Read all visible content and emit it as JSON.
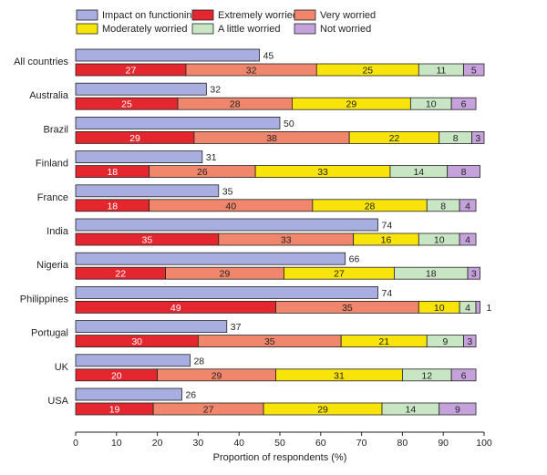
{
  "chart_data": {
    "type": "bar",
    "title": "",
    "xlabel": "Proportion of respondents (%)",
    "ylabel": "",
    "xlim": [
      0,
      100
    ],
    "xticks": [
      "0",
      "10",
      "20",
      "30",
      "40",
      "50",
      "60",
      "70",
      "80",
      "90",
      "100"
    ],
    "legend": {
      "placement": "top",
      "entries": [
        {
          "key": "impact",
          "label": "Impact on functioning",
          "color": "#a8aee0"
        },
        {
          "key": "extremely",
          "label": "Extremely worried",
          "color": "#e4262f"
        },
        {
          "key": "very",
          "label": "Very worried",
          "color": "#f0866b"
        },
        {
          "key": "moderately",
          "label": "Moderately worried",
          "color": "#f8e30a"
        },
        {
          "key": "little",
          "label": "A little worried",
          "color": "#c9e6c4"
        },
        {
          "key": "not",
          "label": "Not worried",
          "color": "#c6a2dc"
        }
      ]
    },
    "categories": [
      "All countries",
      "Australia",
      "Brazil",
      "Finland",
      "France",
      "India",
      "Nigeria",
      "Philippines",
      "Portugal",
      "UK",
      "USA"
    ],
    "impact": [
      45,
      32,
      50,
      31,
      35,
      74,
      66,
      74,
      37,
      28,
      26
    ],
    "worry_series": [
      {
        "key": "extremely",
        "name": "Extremely worried",
        "values": [
          27,
          25,
          29,
          18,
          18,
          35,
          22,
          49,
          30,
          20,
          19
        ]
      },
      {
        "key": "very",
        "name": "Very worried",
        "values": [
          32,
          28,
          38,
          26,
          40,
          33,
          29,
          35,
          35,
          29,
          27
        ]
      },
      {
        "key": "moderately",
        "name": "Moderately worried",
        "values": [
          25,
          29,
          22,
          33,
          28,
          16,
          27,
          10,
          21,
          31,
          29
        ]
      },
      {
        "key": "little",
        "name": "A little worried",
        "values": [
          11,
          10,
          8,
          14,
          8,
          10,
          18,
          4,
          9,
          12,
          14
        ]
      },
      {
        "key": "not",
        "name": "Not worried",
        "values": [
          5,
          6,
          3,
          8,
          4,
          4,
          3,
          1,
          3,
          6,
          9
        ]
      }
    ]
  }
}
